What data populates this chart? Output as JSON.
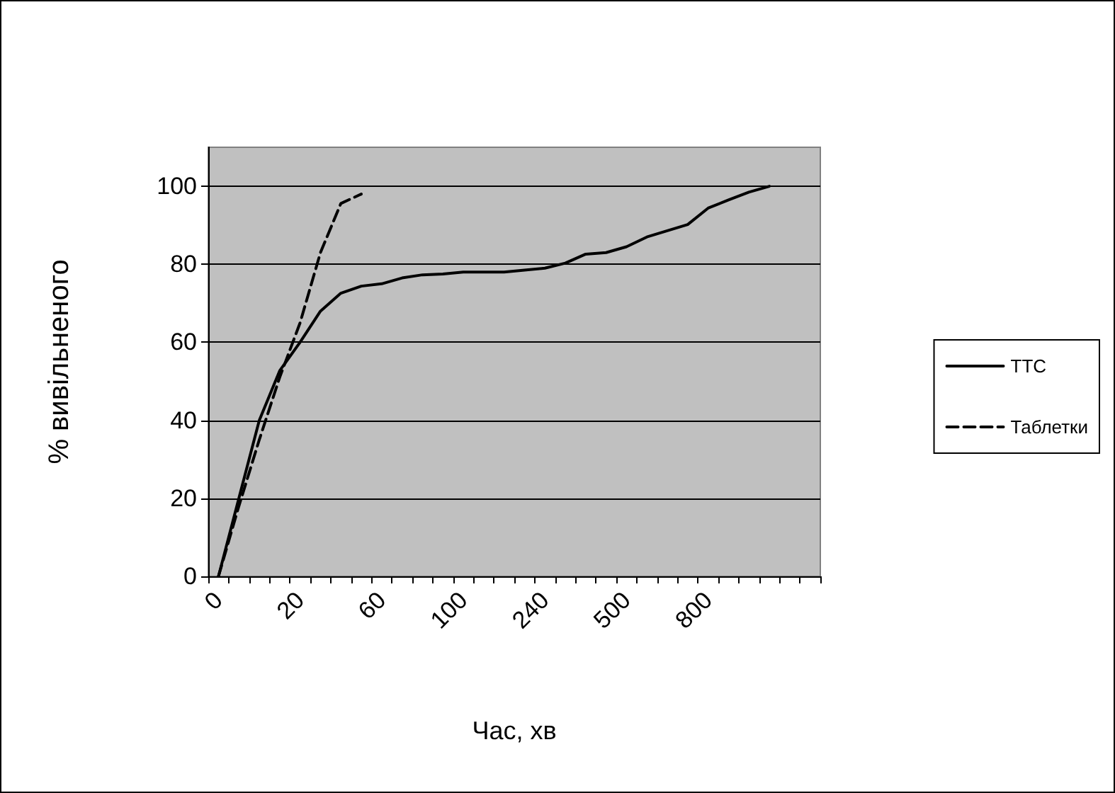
{
  "chart_data": {
    "type": "line",
    "xlabel": "Час, хв",
    "ylabel": "% вивільненого",
    "categories": [
      "0",
      null,
      null,
      null,
      "20",
      null,
      null,
      null,
      "60",
      null,
      null,
      null,
      "100",
      null,
      null,
      null,
      "240",
      null,
      null,
      null,
      "500",
      null,
      null,
      null,
      "800",
      null,
      null,
      null,
      null,
      null
    ],
    "series": [
      {
        "name": "ТТС",
        "color": "#000000",
        "line_style": "solid",
        "values": [
          0,
          20,
          40,
          52.7,
          60,
          68,
          72.6,
          74.4,
          75,
          76.5,
          77.3,
          77.5,
          78,
          78,
          78,
          78.5,
          79,
          80.3,
          82.6,
          83,
          84.5,
          87,
          88.6,
          90.2,
          94.4,
          96.5,
          98.5,
          100,
          null,
          null
        ]
      },
      {
        "name": "Таблетки",
        "color": "#000000",
        "line_style": "dashed",
        "values": [
          0,
          18,
          35,
          51,
          65,
          83,
          95.6,
          98,
          null,
          null,
          null,
          null,
          null,
          null,
          null,
          null,
          null,
          null,
          null,
          null,
          null,
          null,
          null,
          null,
          null,
          null,
          null,
          null,
          null,
          null
        ]
      }
    ],
    "ylim": [
      0,
      110
    ],
    "yticks": [
      0,
      20,
      40,
      60,
      80,
      100
    ],
    "grid": "y",
    "legend": "right",
    "marker": "none"
  }
}
